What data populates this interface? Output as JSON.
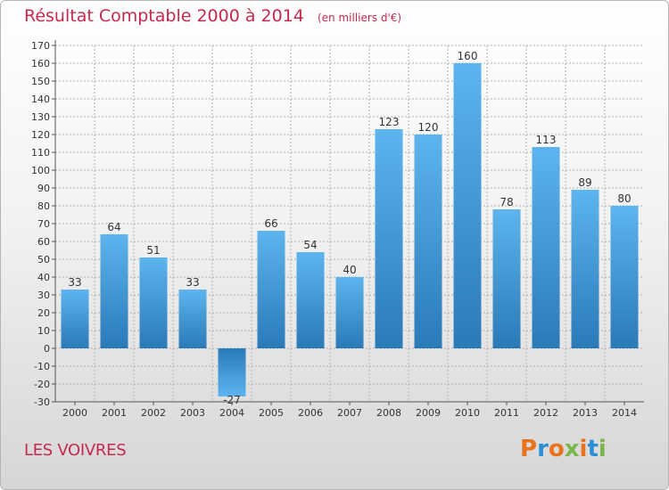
{
  "header": {
    "title": "Résultat Comptable 2000 à 2014",
    "subtitle": "(en milliers d'€)"
  },
  "footer": {
    "commune": "LES VOIVRES",
    "logo_text": "Proxiti",
    "logo_colors": [
      "#e8731c",
      "#2a8fd6",
      "#e8731c",
      "#7ab648",
      "#e8731c",
      "#2a8fd6",
      "#7ab648"
    ]
  },
  "colors": {
    "bar_top": "#5db4ee",
    "bar_bottom": "#2a7ab8",
    "axis": "#555555",
    "grid": "#b0b0b0",
    "accent": "#c8284d"
  },
  "chart_data": {
    "type": "bar",
    "title": "Résultat Comptable 2000 à 2014",
    "subtitle": "(en milliers d'€)",
    "categories": [
      "2000",
      "2001",
      "2002",
      "2003",
      "2004",
      "2005",
      "2006",
      "2007",
      "2008",
      "2009",
      "2010",
      "2011",
      "2012",
      "2013",
      "2014"
    ],
    "values": [
      33,
      64,
      51,
      33,
      -27,
      66,
      54,
      40,
      123,
      120,
      160,
      78,
      113,
      89,
      80
    ],
    "ylim": [
      -30,
      170
    ],
    "yticks": [
      -30,
      -20,
      -10,
      0,
      10,
      20,
      30,
      40,
      50,
      60,
      70,
      80,
      90,
      100,
      110,
      120,
      130,
      140,
      150,
      160,
      170
    ],
    "grid": true,
    "legend": "none"
  }
}
